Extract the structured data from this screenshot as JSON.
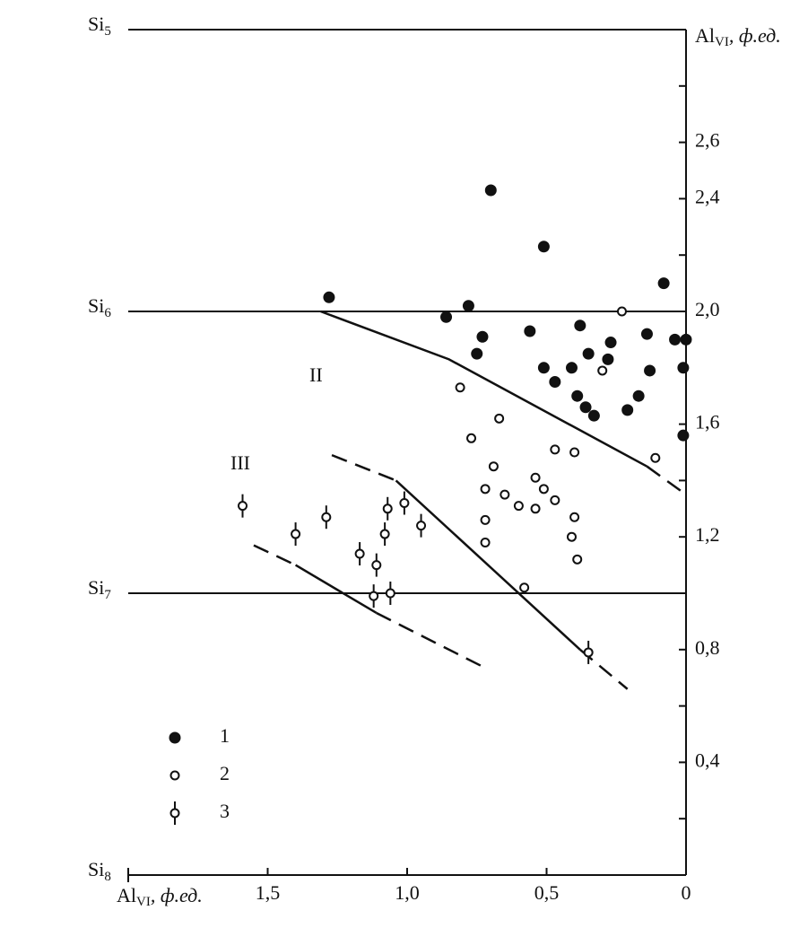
{
  "chart_data": {
    "type": "scatter",
    "x_label": {
      "main": "Al",
      "sub": "VI",
      "unit": ", ф.ед."
    },
    "y_label": {
      "main": "Al",
      "sub": "VI",
      "unit": ", ф.ед."
    },
    "xlim": [
      2.0,
      0.0
    ],
    "xticks": [
      {
        "value": 1.5,
        "label": "1,5"
      },
      {
        "value": 1.0,
        "label": "1,0"
      },
      {
        "value": 0.5,
        "label": "0,5"
      },
      0
    ],
    "ylim": [
      0,
      3
    ],
    "yticks": [
      {
        "value": 2.6,
        "label": "2,6"
      },
      {
        "value": 2.4,
        "label": "2,4"
      },
      {
        "value": 2.0,
        "label": "2,0"
      },
      {
        "value": 1.6,
        "label": "1,6"
      },
      {
        "value": 1.2,
        "label": "1,2"
      },
      {
        "value": 0.8,
        "label": "0,8"
      },
      {
        "value": 0.4,
        "label": "0,4"
      }
    ],
    "yticks_minor": [
      2.8,
      2.2,
      1.8,
      1.4,
      1.0,
      0.6,
      0.2
    ],
    "yticks_left": [
      {
        "value": 3,
        "label": "Si",
        "sub": "5"
      },
      {
        "value": 2,
        "label": "Si",
        "sub": "6"
      },
      {
        "value": 1,
        "label": "Si",
        "sub": "7"
      },
      {
        "value": 0,
        "label": "Si",
        "sub": "8"
      }
    ],
    "annotations": [
      "II",
      "III"
    ],
    "legend": "lower left",
    "series": [
      {
        "name": "1",
        "marker": "filled",
        "color": "#111",
        "x": [
          1.28,
          0.7,
          0.51,
          0.08,
          0.86,
          0.78,
          0.73,
          0.75,
          0.56,
          0.38,
          0.51,
          0.47,
          0.41,
          0.39,
          0.36,
          0.33,
          0.35,
          0.27,
          0.28,
          0.14,
          0.13,
          0.17,
          0.21,
          0.04,
          0.0,
          0.01,
          0.01
        ],
        "values": [
          2.05,
          2.43,
          2.23,
          2.1,
          1.98,
          2.02,
          1.91,
          1.85,
          1.93,
          1.95,
          1.8,
          1.75,
          1.8,
          1.7,
          1.66,
          1.63,
          1.85,
          1.89,
          1.83,
          1.92,
          1.79,
          1.7,
          1.65,
          1.9,
          1.9,
          1.8,
          1.56
        ]
      },
      {
        "name": "2",
        "marker": "open",
        "color": "#111",
        "x": [
          0.23,
          0.3,
          0.81,
          0.67,
          0.77,
          0.47,
          0.4,
          0.11,
          0.69,
          0.54,
          0.72,
          0.51,
          0.65,
          0.47,
          0.6,
          0.54,
          0.4,
          0.72,
          0.41,
          0.72,
          0.39,
          0.58
        ],
        "values": [
          2.0,
          1.79,
          1.73,
          1.62,
          1.55,
          1.51,
          1.5,
          1.48,
          1.45,
          1.41,
          1.37,
          1.37,
          1.35,
          1.33,
          1.31,
          1.3,
          1.27,
          1.26,
          1.2,
          1.18,
          1.12,
          1.02
        ]
      },
      {
        "name": "3",
        "marker": "open-bar",
        "color": "#111",
        "x": [
          1.59,
          1.4,
          1.29,
          1.07,
          1.01,
          0.95,
          1.08,
          1.17,
          1.11,
          1.12,
          1.06,
          0.35
        ],
        "values": [
          1.31,
          1.21,
          1.27,
          1.3,
          1.32,
          1.24,
          1.21,
          1.14,
          1.1,
          0.99,
          1.0,
          0.79
        ]
      }
    ],
    "lines": [
      {
        "style": "solid",
        "x": [
          1.31,
          0.85,
          0.14
        ],
        "y": [
          2.0,
          1.83,
          1.45
        ]
      },
      {
        "style": "dashed",
        "x": [
          0.14,
          0.0
        ],
        "y": [
          1.45,
          1.35
        ]
      },
      {
        "style": "dashed",
        "x": [
          1.27,
          1.04
        ],
        "y": [
          1.49,
          1.4
        ]
      },
      {
        "style": "solid",
        "x": [
          1.04,
          0.38
        ],
        "y": [
          1.4,
          0.8
        ]
      },
      {
        "style": "dashed",
        "x": [
          0.38,
          0.21
        ],
        "y": [
          0.8,
          0.66
        ]
      },
      {
        "style": "dashed",
        "x": [
          1.55,
          1.4
        ],
        "y": [
          1.17,
          1.1
        ]
      },
      {
        "style": "solid",
        "x": [
          1.4,
          1.11
        ],
        "y": [
          1.1,
          0.93
        ]
      },
      {
        "style": "dashed",
        "x": [
          1.11,
          0.73
        ],
        "y": [
          0.93,
          0.74
        ]
      }
    ]
  }
}
